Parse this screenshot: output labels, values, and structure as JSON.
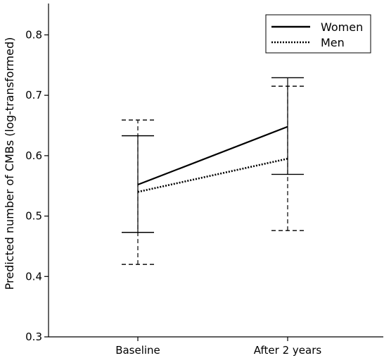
{
  "chart_data": {
    "type": "line",
    "title": "",
    "xlabel": "",
    "ylabel": "Predicted  number  of CMBs (log-transformed)",
    "categories": [
      "Baseline",
      "After 2 years"
    ],
    "ylim": [
      0.3,
      0.85
    ],
    "yticks": [
      0.3,
      0.4,
      0.5,
      0.6,
      0.7,
      0.8
    ],
    "grid": false,
    "legend": "top-right",
    "series": [
      {
        "name": "Women",
        "style": "solid",
        "values": [
          0.552,
          0.648
        ],
        "ci_lower": [
          0.473,
          0.569
        ],
        "ci_upper": [
          0.633,
          0.729
        ]
      },
      {
        "name": "Men",
        "style": "dotted",
        "values": [
          0.54,
          0.595
        ],
        "ci_lower": [
          0.42,
          0.476
        ],
        "ci_upper": [
          0.659,
          0.715
        ]
      }
    ]
  }
}
